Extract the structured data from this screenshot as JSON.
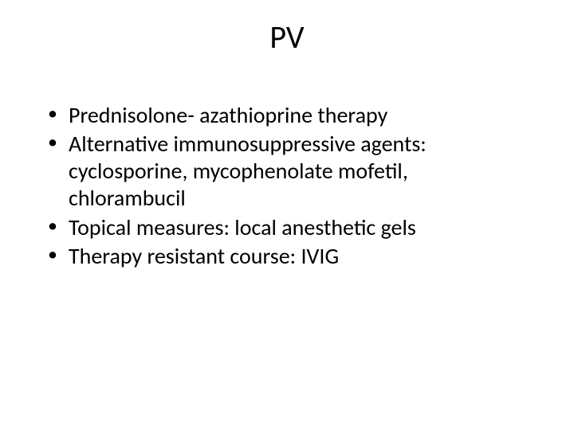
{
  "slide": {
    "title": "PV",
    "bullets": [
      "Prednisolone- azathioprine therapy",
      "Alternative immunosuppressive agents: cyclosporine, mycophenolate mofetil, chlorambucil",
      "Topical measures: local anesthetic gels",
      "Therapy resistant course: IVIG"
    ],
    "background_color": "#ffffff",
    "text_color": "#000000",
    "title_fontsize": 40,
    "body_fontsize": 28
  }
}
